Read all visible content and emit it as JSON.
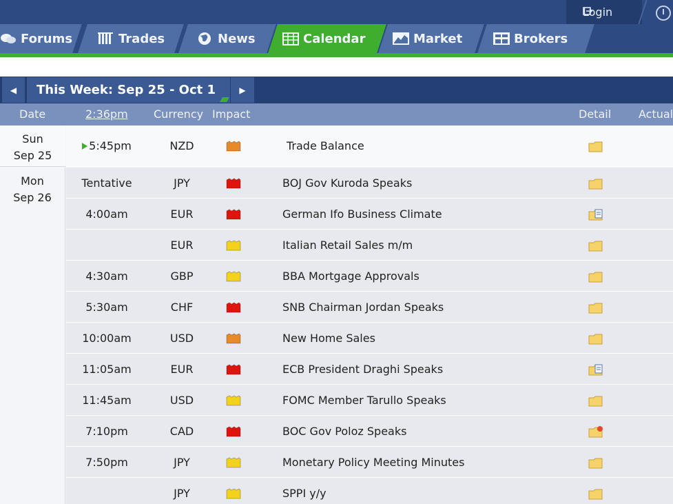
{
  "header": {
    "login_label": "Login"
  },
  "nav": {
    "tabs": [
      {
        "label": "Forums",
        "icon": "forums-icon"
      },
      {
        "label": "Trades",
        "icon": "trades-icon"
      },
      {
        "label": "News",
        "icon": "globe-icon"
      },
      {
        "label": "Calendar",
        "icon": "calendar-icon",
        "active": true
      },
      {
        "label": "Market",
        "icon": "market-chart-icon"
      },
      {
        "label": "Brokers",
        "icon": "brokers-icon"
      }
    ],
    "active_color": "#3fae2e"
  },
  "week": {
    "title": "This Week: Sep 25 - Oct 1",
    "prev_glyph": "◀",
    "next_glyph": "▶"
  },
  "columns": {
    "date": "Date",
    "time": "2:36pm",
    "currency": "Currency",
    "impact": "Impact",
    "detail": "Detail",
    "actual": "Actual"
  },
  "days": [
    {
      "line1": "Sun",
      "line2": "Sep 25"
    },
    {
      "line1": "Mon",
      "line2": "Sep 26"
    }
  ],
  "impact_colors": {
    "high": "#e0140f",
    "medium": "#e8892a",
    "low": "#f2d21b"
  },
  "events": [
    {
      "time": "5:45pm",
      "currency": "NZD",
      "impact": "medium",
      "event": "Trade Balance",
      "detail_icon": "folder-icon",
      "current": true
    },
    {
      "time": "Tentative",
      "currency": "JPY",
      "impact": "high",
      "event": "BOJ Gov Kuroda Speaks",
      "detail_icon": "folder-icon"
    },
    {
      "time": "4:00am",
      "currency": "EUR",
      "impact": "high",
      "event": "German Ifo Business Climate",
      "detail_icon": "folder-document-icon"
    },
    {
      "time": "",
      "currency": "EUR",
      "impact": "low",
      "event": "Italian Retail Sales m/m",
      "detail_icon": "folder-icon"
    },
    {
      "time": "4:30am",
      "currency": "GBP",
      "impact": "low",
      "event": "BBA Mortgage Approvals",
      "detail_icon": "folder-icon"
    },
    {
      "time": "5:30am",
      "currency": "CHF",
      "impact": "high",
      "event": "SNB Chairman Jordan Speaks",
      "detail_icon": "folder-icon"
    },
    {
      "time": "10:00am",
      "currency": "USD",
      "impact": "medium",
      "event": "New Home Sales",
      "detail_icon": "folder-icon"
    },
    {
      "time": "11:05am",
      "currency": "EUR",
      "impact": "high",
      "event": "ECB President Draghi Speaks",
      "detail_icon": "folder-document-icon"
    },
    {
      "time": "11:45am",
      "currency": "USD",
      "impact": "low",
      "event": "FOMC Member Tarullo Speaks",
      "detail_icon": "folder-icon"
    },
    {
      "time": "7:10pm",
      "currency": "CAD",
      "impact": "high",
      "event": "BOC Gov Poloz Speaks",
      "detail_icon": "folder-star-icon"
    },
    {
      "time": "7:50pm",
      "currency": "JPY",
      "impact": "low",
      "event": "Monetary Policy Meeting Minutes",
      "detail_icon": "folder-icon"
    },
    {
      "time": "",
      "currency": "JPY",
      "impact": "low",
      "event": "SPPI y/y",
      "detail_icon": "folder-icon"
    }
  ]
}
